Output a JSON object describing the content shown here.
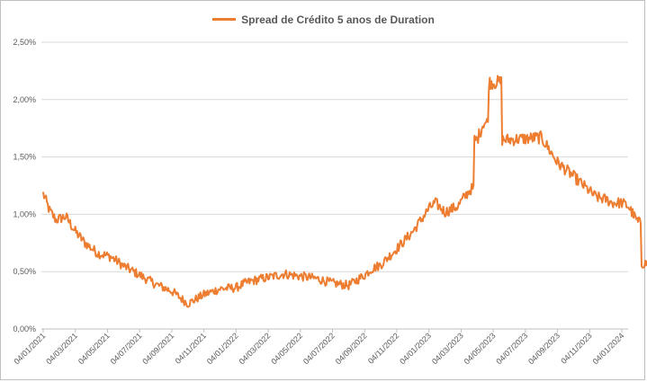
{
  "chart_data": {
    "type": "line",
    "title": "",
    "xlabel": "",
    "ylabel": "",
    "ylim": [
      0,
      2.5
    ],
    "grid": true,
    "legend_position": "top",
    "y_ticks": [
      {
        "value": 0.0,
        "label": "0,00%"
      },
      {
        "value": 0.5,
        "label": "0,50%"
      },
      {
        "value": 1.0,
        "label": "1,00%"
      },
      {
        "value": 1.5,
        "label": "1,50%"
      },
      {
        "value": 2.0,
        "label": "2,00%"
      },
      {
        "value": 2.5,
        "label": "2,50%"
      }
    ],
    "x_ticks": [
      "04/01/2021",
      "04/03/2021",
      "04/05/2021",
      "04/07/2021",
      "04/09/2021",
      "04/11/2021",
      "04/01/2022",
      "04/03/2022",
      "04/05/2022",
      "04/07/2022",
      "04/09/2022",
      "04/11/2022",
      "04/01/2023",
      "04/03/2023",
      "04/05/2023",
      "04/07/2023",
      "04/09/2023",
      "04/11/2023",
      "04/01/2024"
    ],
    "series": [
      {
        "name": "Spread de Crédito 5 anos de Duration",
        "color": "#ed7d31",
        "x": [
          0,
          0.2,
          0.4,
          0.7,
          1.0,
          1.3,
          1.7,
          2.1,
          2.5,
          3.0,
          3.5,
          4.0,
          4.5,
          5.0,
          5.5,
          6.0,
          6.2,
          6.5,
          7.0,
          7.5,
          8.0,
          8.5,
          9.0,
          9.5,
          10.0,
          10.2,
          10.5,
          11.0,
          11.5,
          12.0,
          12.2,
          12.5,
          12.9,
          13.1,
          13.3,
          13.5,
          13.7,
          14.0,
          14.5,
          15.0,
          15.5,
          16.0,
          16.5,
          17.0,
          17.2,
          17.5,
          17.7,
          18.0,
          18.2,
          18.5,
          18.7,
          19.0
        ],
        "values": [
          1.18,
          1.03,
          0.95,
          0.98,
          0.85,
          0.75,
          0.66,
          0.63,
          0.55,
          0.47,
          0.39,
          0.33,
          0.22,
          0.3,
          0.35,
          0.36,
          0.39,
          0.42,
          0.45,
          0.48,
          0.46,
          0.44,
          0.4,
          0.38,
          0.47,
          0.52,
          0.56,
          0.7,
          0.85,
          1.05,
          1.1,
          1.02,
          1.07,
          1.15,
          1.22,
          1.65,
          1.8,
          2.15,
          1.65,
          1.66,
          1.67,
          1.45,
          1.33,
          1.2,
          1.15,
          1.13,
          1.1,
          1.1,
          1.07,
          0.93,
          0.57,
          0.58
        ]
      }
    ]
  }
}
